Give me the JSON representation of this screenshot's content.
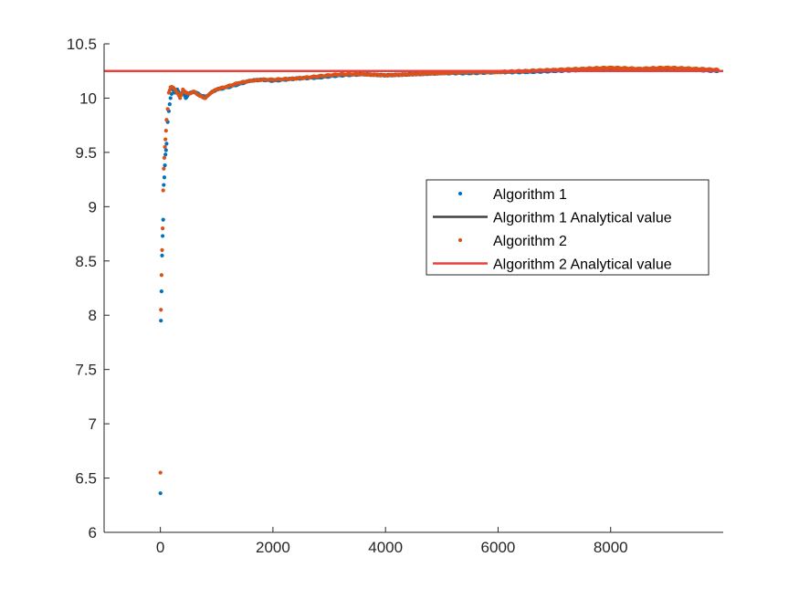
{
  "chart_data": {
    "type": "scatter",
    "title": "",
    "xlabel": "",
    "ylabel": "",
    "xlim": [
      -1000,
      10000
    ],
    "ylim": [
      6,
      10.5
    ],
    "x_ticks": [
      0,
      2000,
      4000,
      6000,
      8000
    ],
    "x_tick_labels": [
      "0",
      "2000",
      "4000",
      "6000",
      "8000"
    ],
    "y_ticks": [
      6,
      6.5,
      7,
      7.5,
      8,
      8.5,
      9,
      9.5,
      10,
      10.5
    ],
    "y_tick_labels": [
      "6",
      "6.5",
      "7",
      "7.5",
      "8",
      "8.5",
      "9",
      "9.5",
      "10",
      "10.5"
    ],
    "grid": false,
    "legend_position": "right",
    "colors": {
      "algorithm1": "#0072BD",
      "algorithm2": "#D95319",
      "analytical1": "#404040",
      "analytical2": "#E8403A"
    },
    "series": [
      {
        "name": "Algorithm 1",
        "kind": "scatter",
        "color": "#0072BD",
        "x": [
          1,
          10,
          20,
          30,
          40,
          50,
          60,
          70,
          80,
          90,
          100,
          110,
          130,
          150,
          180,
          220,
          260,
          300,
          350,
          400,
          450,
          500,
          600,
          700,
          800,
          900,
          1000,
          1200,
          1400,
          1600,
          1800,
          2000,
          2400,
          2800,
          3200,
          3600,
          4000,
          4500,
          5000,
          5500,
          6000,
          6500,
          7000,
          7500,
          8000,
          8500,
          9000,
          9500,
          9900
        ],
        "y": [
          6.36,
          7.95,
          8.22,
          8.55,
          8.73,
          8.88,
          9.2,
          9.27,
          9.38,
          9.48,
          9.52,
          9.58,
          9.78,
          9.88,
          10.0,
          10.08,
          10.05,
          10.08,
          10.03,
          10.06,
          10.0,
          10.04,
          10.06,
          10.03,
          10.01,
          10.05,
          10.08,
          10.1,
          10.13,
          10.16,
          10.17,
          10.16,
          10.18,
          10.19,
          10.21,
          10.22,
          10.21,
          10.22,
          10.23,
          10.23,
          10.24,
          10.24,
          10.25,
          10.26,
          10.27,
          10.26,
          10.27,
          10.26,
          10.25
        ]
      },
      {
        "name": "Algorithm 1 Analytical value",
        "kind": "line",
        "color": "#404040",
        "value": 10.25
      },
      {
        "name": "Algorithm 2",
        "kind": "scatter",
        "color": "#D95319",
        "x": [
          1,
          10,
          20,
          30,
          40,
          50,
          60,
          70,
          80,
          90,
          100,
          110,
          130,
          150,
          180,
          220,
          260,
          300,
          350,
          400,
          450,
          500,
          600,
          700,
          800,
          900,
          1000,
          1200,
          1400,
          1600,
          1800,
          2000,
          2400,
          2800,
          3200,
          3600,
          4000,
          4500,
          5000,
          5500,
          6000,
          6500,
          7000,
          7500,
          8000,
          8500,
          9000,
          9500,
          9900
        ],
        "y": [
          6.55,
          8.05,
          8.37,
          8.6,
          8.8,
          9.15,
          9.35,
          9.45,
          9.55,
          9.62,
          9.7,
          9.8,
          9.9,
          10.05,
          10.1,
          10.1,
          10.08,
          10.05,
          10.0,
          10.08,
          10.05,
          10.04,
          10.06,
          10.02,
          10.0,
          10.05,
          10.08,
          10.11,
          10.14,
          10.16,
          10.17,
          10.17,
          10.18,
          10.2,
          10.22,
          10.22,
          10.21,
          10.22,
          10.23,
          10.24,
          10.24,
          10.25,
          10.26,
          10.27,
          10.28,
          10.27,
          10.28,
          10.27,
          10.26
        ]
      },
      {
        "name": "Algorithm 2 Analytical value",
        "kind": "line",
        "color": "#E8403A",
        "value": 10.25
      }
    ]
  }
}
